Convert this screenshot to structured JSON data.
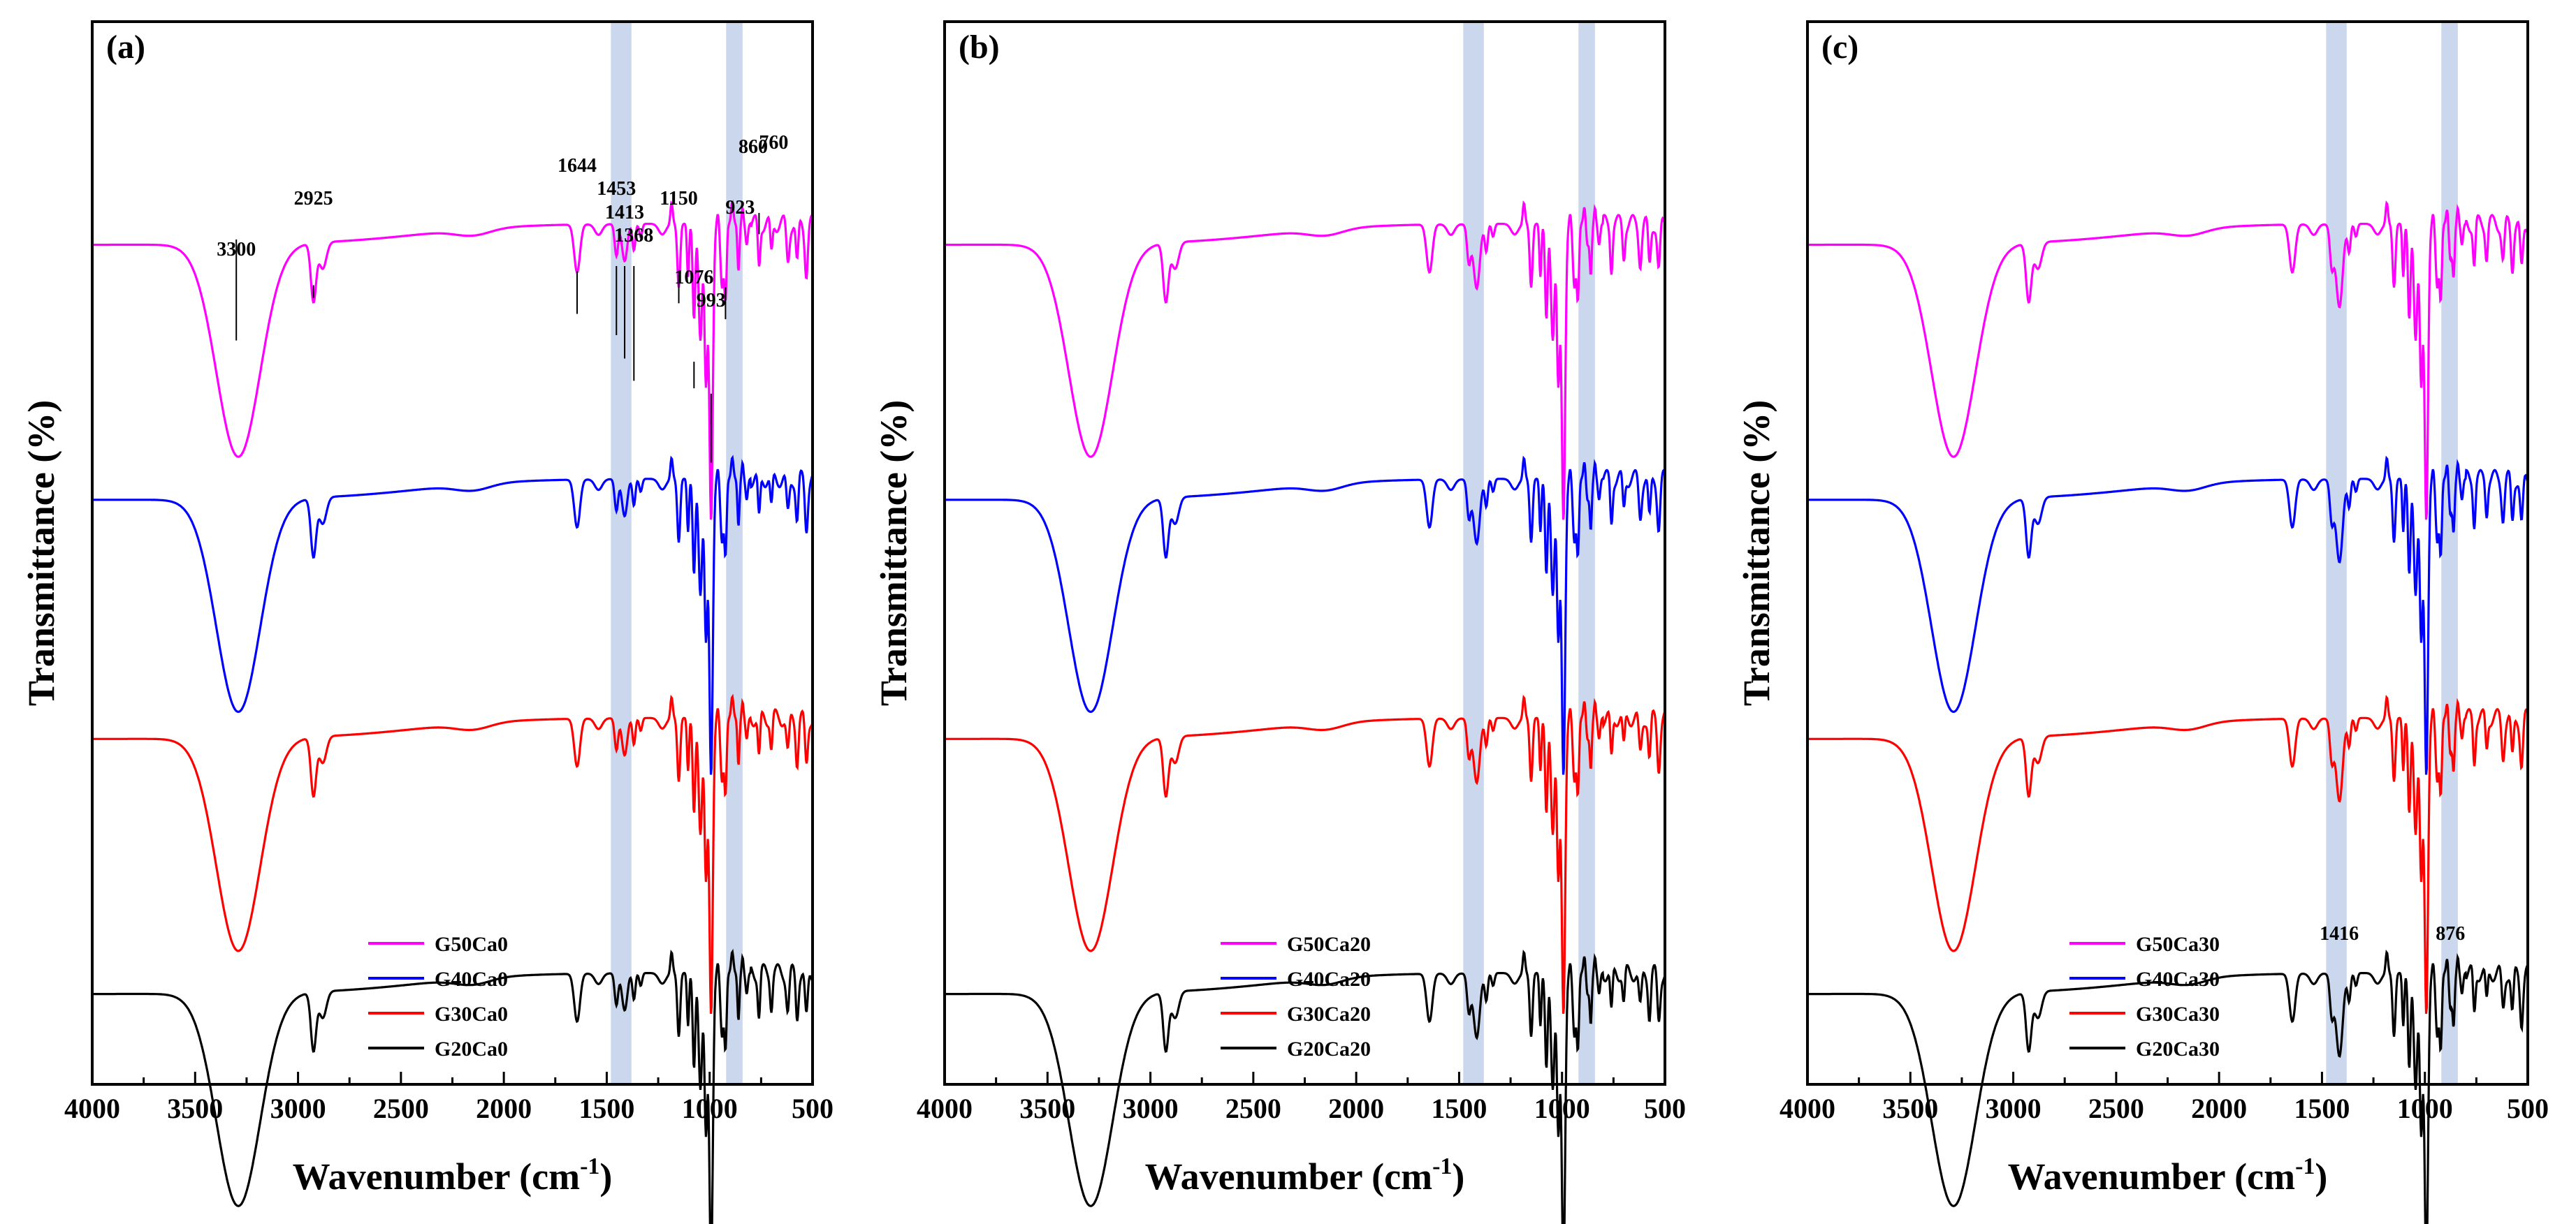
{
  "chart_data": [
    {
      "type": "line",
      "panel_label": "(a)",
      "xlabel": "Wavenumber (cm",
      "xlabel_superscript": "-1",
      "xlabel_close": ")",
      "ylabel": "Transmittance (%)",
      "xlim": [
        4000,
        500
      ],
      "x_ticks": [
        4000,
        3500,
        3000,
        2500,
        2000,
        1500,
        1000,
        500
      ],
      "highlight_bands": [
        [
          1480,
          1380
        ],
        [
          920,
          840
        ]
      ],
      "series": [
        {
          "name": "G50Ca0",
          "color": "#ff00ff",
          "base": 0.8
        },
        {
          "name": "G40Ca0",
          "color": "#0000ff",
          "base": 0.56
        },
        {
          "name": "G30Ca0",
          "color": "#ff0000",
          "base": 0.335
        },
        {
          "name": "G20Ca0",
          "color": "#000000",
          "base": 0.095
        }
      ],
      "annotations": [
        {
          "text": "3300",
          "x": 3300
        },
        {
          "text": "2925",
          "x": 2925
        },
        {
          "text": "1644",
          "x": 1644
        },
        {
          "text": "1453",
          "x": 1453
        },
        {
          "text": "1413",
          "x": 1413
        },
        {
          "text": "1368",
          "x": 1368
        },
        {
          "text": "1150",
          "x": 1150
        },
        {
          "text": "1076",
          "x": 1076
        },
        {
          "text": "993",
          "x": 993
        },
        {
          "text": "923",
          "x": 923
        },
        {
          "text": "860",
          "x": 860
        },
        {
          "text": "760",
          "x": 760
        }
      ],
      "legend_position": "bottom-center"
    },
    {
      "type": "line",
      "panel_label": "(b)",
      "xlabel": "Wavenumber (cm",
      "xlabel_superscript": "-1",
      "xlabel_close": ")",
      "ylabel": "Transmittance (%)",
      "xlim": [
        4000,
        500
      ],
      "x_ticks": [
        4000,
        3500,
        3000,
        2500,
        2000,
        1500,
        1000,
        500
      ],
      "highlight_bands": [
        [
          1480,
          1380
        ],
        [
          920,
          840
        ]
      ],
      "series": [
        {
          "name": "G50Ca20",
          "color": "#ff00ff",
          "base": 0.8
        },
        {
          "name": "G40Ca20",
          "color": "#0000ff",
          "base": 0.56
        },
        {
          "name": "G30Ca20",
          "color": "#ff0000",
          "base": 0.335
        },
        {
          "name": "G20Ca20",
          "color": "#000000",
          "base": 0.095
        }
      ],
      "annotations": [],
      "legend_position": "bottom-center"
    },
    {
      "type": "line",
      "panel_label": "(c)",
      "xlabel": "Wavenumber (cm",
      "xlabel_superscript": "-1",
      "xlabel_close": ")",
      "ylabel": "Transmittance (%)",
      "xlim": [
        4000,
        500
      ],
      "x_ticks": [
        4000,
        3500,
        3000,
        2500,
        2000,
        1500,
        1000,
        500
      ],
      "highlight_bands": [
        [
          1480,
          1380
        ],
        [
          920,
          840
        ]
      ],
      "series": [
        {
          "name": "G50Ca30",
          "color": "#ff00ff",
          "base": 0.8
        },
        {
          "name": "G40Ca30",
          "color": "#0000ff",
          "base": 0.56
        },
        {
          "name": "G30Ca30",
          "color": "#ff0000",
          "base": 0.335
        },
        {
          "name": "G20Ca30",
          "color": "#000000",
          "base": 0.095
        }
      ],
      "annotations": [
        {
          "text": "1416",
          "x": 1416
        },
        {
          "text": "876",
          "x": 876
        }
      ],
      "legend_position": "bottom-center"
    }
  ]
}
